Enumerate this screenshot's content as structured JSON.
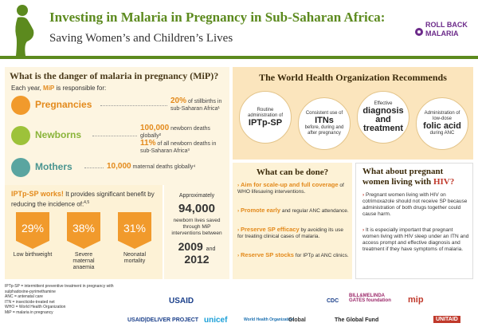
{
  "header": {
    "title": "Investing in Malaria in Pregnancy in Sub-Saharan Africa:",
    "subtitle": "Saving Women’s and Children’s Lives",
    "logo_line1": "ROLL BACK",
    "logo_line2": "MALARIA"
  },
  "danger": {
    "title": "What is the danger of malaria in pregnancy (MiP)?",
    "sub_pre": "Each year,",
    "sub_mip": "MiP",
    "sub_post": "is responsible for:",
    "rows": [
      {
        "label": "Pregnancies",
        "stat_big": "20%",
        "stat_text": "of stillbirths in sub-Saharan Africa¹"
      },
      {
        "label": "Newborns",
        "stat_big": "100,000",
        "stat_text": "newborn deaths globally²",
        "stat_big2": "11%",
        "stat_text2": "of all newborn deaths in sub-Saharan Africa³"
      },
      {
        "label": "Mothers",
        "stat_big": "10,000",
        "stat_text": "maternal deaths globally⁴"
      }
    ]
  },
  "iptp": {
    "head_hl": "IPTp-SP works!",
    "head_text": "It provides significant benefit by reducing the incidence of:",
    "head_ref": "4,5",
    "items": [
      {
        "value": "29%",
        "label": "Low birthweight"
      },
      {
        "value": "38%",
        "label": "Severe maternal anaemia"
      },
      {
        "value": "31%",
        "label": "Neonatal mortality"
      }
    ]
  },
  "saved": {
    "pre": "Approximately",
    "number": "94,000",
    "text": "newborn lives saved through MiP interventions between",
    "year1": "2009",
    "and": "and",
    "year2": "2012"
  },
  "who": {
    "title": "The World Health Organization Recommends",
    "bubbles": [
      {
        "small_top": "Routine administration of",
        "big": "IPTp-SP",
        "small_bottom": ""
      },
      {
        "small_top": "Consistent use of",
        "big": "ITNs",
        "small_bottom": "before, during and after pregnancy"
      },
      {
        "small_top": "Effective",
        "big": "diagnosis and treatment",
        "small_bottom": ""
      },
      {
        "small_top": "Administration of low-dose",
        "big": "folic acid",
        "small_bottom": "during ANC"
      }
    ]
  },
  "done": {
    "title": "What can be done?",
    "items": [
      {
        "hl": "Aim for scale-up and full coverage",
        "text": "of WHO lifesaving interventions."
      },
      {
        "hl": "Promote early",
        "text": "and regular ANC attendance."
      },
      {
        "hl": "Preserve SP efficacy",
        "text": "by avoiding its use for treating clinical cases of malaria."
      },
      {
        "hl": "Reserve SP stocks",
        "text": "for IPTp at ANC clinics."
      }
    ]
  },
  "hiv": {
    "title_pre": "What about pregnant women living with",
    "title_red": "HIV",
    "title_post": "?",
    "items": [
      "Pregnant women living with HIV on cotrimoxazole should not receive SP because administration of both drugs together could cause harm.",
      "It is especially important that pregnant women living with HIV sleep under an ITN and access prompt and effective diagnosis and treatment if they have symptoms of malaria."
    ]
  },
  "footer": {
    "defs": [
      "IPTp-SP = intermittent preventive treatment in pregnancy with sulphadoxine-pyrimethamine",
      "ANC = antenatal care",
      "ITN = insecticide-treated net",
      "WHO = World Health Organization",
      "MiP = malaria in pregnancy"
    ],
    "logos": [
      "USAID",
      "CDC",
      "BILL&MELINDA GATES foundation",
      "mip",
      "USAID|DELIVER PROJECT",
      "unicef",
      "World Health Organization",
      "Global",
      "The Global Fund",
      "UNITAID"
    ]
  }
}
